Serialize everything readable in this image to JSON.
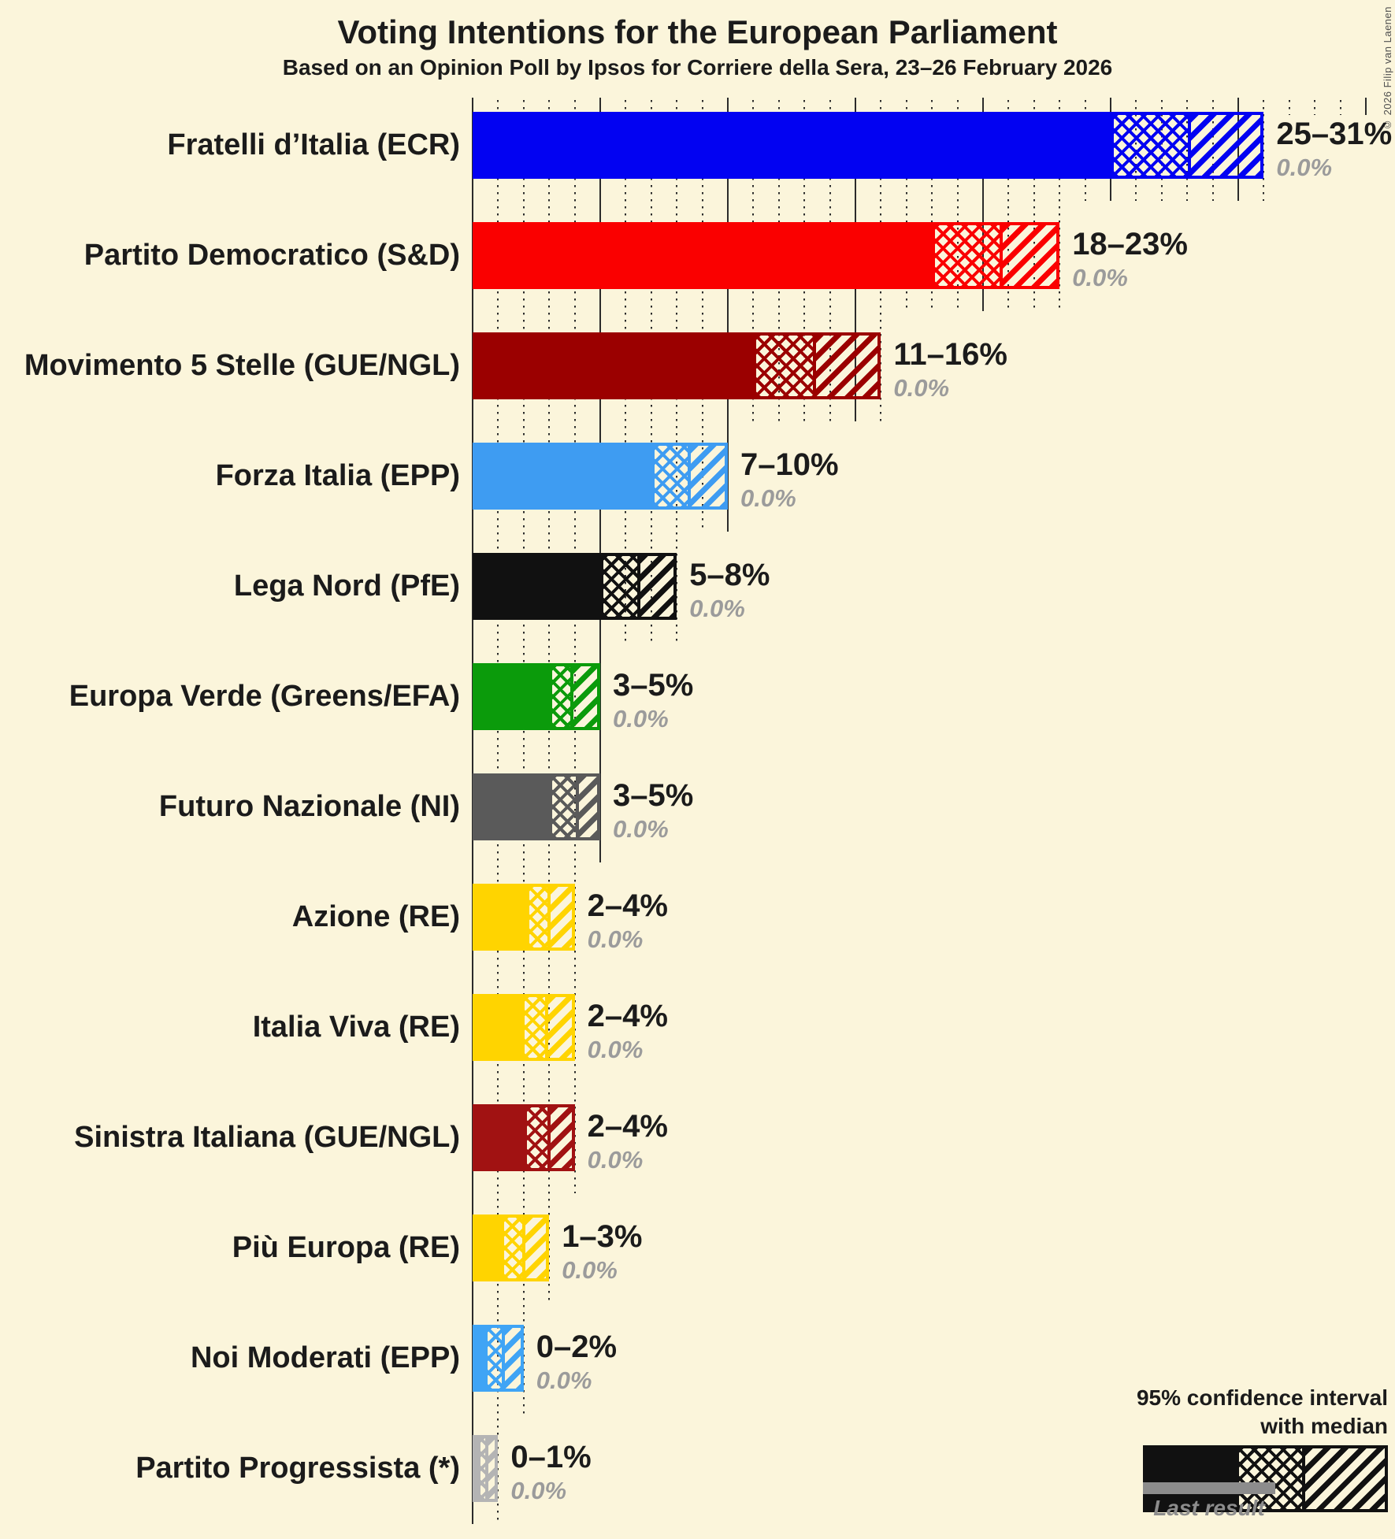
{
  "chart_data": {
    "type": "bar",
    "orientation": "horizontal",
    "title": "Voting Intentions for the European Parliament",
    "subtitle": "Based on an Opinion Poll by Ipsos for Corriere della Sera, 23–26 February 2026",
    "copyright": "© 2026 Filip van Laenen",
    "unit": "%",
    "x_axis": {
      "min": 0,
      "max": 35,
      "minor_grid_step_pct": 1,
      "major_grid_step_pct": 5,
      "grid": "dotted minor, solid major"
    },
    "legend": {
      "line1": "95% confidence interval",
      "line2": "with median",
      "last_result": "Last result"
    },
    "parties": [
      {
        "label": "Fratelli d’Italia (ECR)",
        "ci_label": "25–31%",
        "low": 25,
        "median": 28.1,
        "high": 31,
        "last_result": 0.0,
        "last_result_label": "0.0%",
        "color": "#0202F2"
      },
      {
        "label": "Partito Democratico (S&D)",
        "ci_label": "18–23%",
        "low": 18,
        "median": 20.7,
        "high": 23,
        "last_result": 0.0,
        "last_result_label": "0.0%",
        "color": "#FA0000"
      },
      {
        "label": "Movimento 5 Stelle (GUE/NGL)",
        "ci_label": "11–16%",
        "low": 11,
        "median": 13.4,
        "high": 16,
        "last_result": 0.0,
        "last_result_label": "0.0%",
        "color": "#9B0000"
      },
      {
        "label": "Forza Italia (EPP)",
        "ci_label": "7–10%",
        "low": 7,
        "median": 8.5,
        "high": 10,
        "last_result": 0.0,
        "last_result_label": "0.0%",
        "color": "#3E9CF2"
      },
      {
        "label": "Lega Nord (PfE)",
        "ci_label": "5–8%",
        "low": 5,
        "median": 6.5,
        "high": 8,
        "last_result": 0.0,
        "last_result_label": "0.0%",
        "color": "#111111"
      },
      {
        "label": "Europa Verde (Greens/EFA)",
        "ci_label": "3–5%",
        "low": 3,
        "median": 3.9,
        "high": 5,
        "last_result": 0.0,
        "last_result_label": "0.0%",
        "color": "#0B9B0B"
      },
      {
        "label": "Futuro Nazionale (NI)",
        "ci_label": "3–5%",
        "low": 3,
        "median": 4.1,
        "high": 5,
        "last_result": 0.0,
        "last_result_label": "0.0%",
        "color": "#5A5A5A"
      },
      {
        "label": "Azione (RE)",
        "ci_label": "2–4%",
        "low": 2.1,
        "median": 3.0,
        "high": 4,
        "last_result": 0.0,
        "last_result_label": "0.0%",
        "color": "#FFD400"
      },
      {
        "label": "Italia Viva (RE)",
        "ci_label": "2–4%",
        "low": 1.9,
        "median": 2.9,
        "high": 4,
        "last_result": 0.0,
        "last_result_label": "0.0%",
        "color": "#FFD400"
      },
      {
        "label": "Sinistra Italiana (GUE/NGL)",
        "ci_label": "2–4%",
        "low": 2,
        "median": 3.0,
        "high": 4,
        "last_result": 0.0,
        "last_result_label": "0.0%",
        "color": "#A11212"
      },
      {
        "label": "Più Europa (RE)",
        "ci_label": "1–3%",
        "low": 1.1,
        "median": 2.0,
        "high": 3,
        "last_result": 0.0,
        "last_result_label": "0.0%",
        "color": "#FFD400"
      },
      {
        "label": "Noi Moderati (EPP)",
        "ci_label": "0–2%",
        "low": 0.45,
        "median": 1.2,
        "high": 2,
        "last_result": 0.0,
        "last_result_label": "0.0%",
        "color": "#3FA4F5"
      },
      {
        "label": "Partito Progressista (*)",
        "ci_label": "0–1%",
        "low": 0.2,
        "median": 0.55,
        "high": 1,
        "last_result": 0.0,
        "last_result_label": "0.0%",
        "color": "#B4B4B4"
      }
    ]
  }
}
